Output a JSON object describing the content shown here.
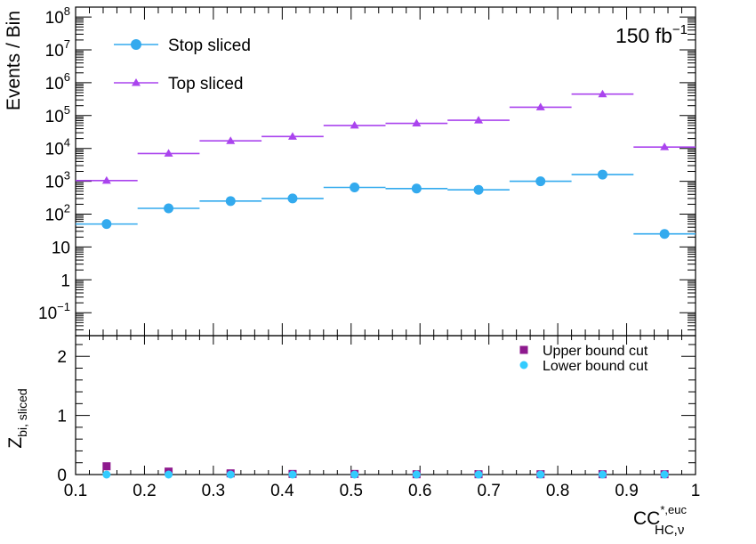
{
  "chart_data": {
    "type": "scatter",
    "top_panel": {
      "ylabel": "Events / Bin",
      "yscale": "log",
      "ylim": [
        0.02,
        200000000
      ],
      "yticks": [
        {
          "v": 0.1,
          "base": "10",
          "exp": "−1"
        },
        {
          "v": 1,
          "text": "1"
        },
        {
          "v": 10,
          "text": "10"
        },
        {
          "v": 100,
          "base": "10",
          "exp": "2"
        },
        {
          "v": 1000,
          "base": "10",
          "exp": "3"
        },
        {
          "v": 10000,
          "base": "10",
          "exp": "4"
        },
        {
          "v": 100000,
          "base": "10",
          "exp": "5"
        },
        {
          "v": 1000000,
          "base": "10",
          "exp": "6"
        },
        {
          "v": 10000000,
          "base": "10",
          "exp": "7"
        },
        {
          "v": 100000000,
          "base": "10",
          "exp": "8"
        }
      ],
      "lumi": {
        "base": "150 fb",
        "exp": "−1"
      },
      "legend_position": "top-left",
      "series": [
        {
          "name": "Stop sliced",
          "color": "#33aaee",
          "marker": "circle",
          "bins": [
            {
              "lo": 0.1,
              "hi": 0.19,
              "x": 0.145,
              "y": 50
            },
            {
              "lo": 0.19,
              "hi": 0.28,
              "x": 0.235,
              "y": 150
            },
            {
              "lo": 0.28,
              "hi": 0.37,
              "x": 0.325,
              "y": 250
            },
            {
              "lo": 0.37,
              "hi": 0.46,
              "x": 0.415,
              "y": 300
            },
            {
              "lo": 0.46,
              "hi": 0.55,
              "x": 0.505,
              "y": 650
            },
            {
              "lo": 0.55,
              "hi": 0.64,
              "x": 0.595,
              "y": 600
            },
            {
              "lo": 0.64,
              "hi": 0.73,
              "x": 0.685,
              "y": 550
            },
            {
              "lo": 0.73,
              "hi": 0.82,
              "x": 0.775,
              "y": 1000
            },
            {
              "lo": 0.82,
              "hi": 0.91,
              "x": 0.865,
              "y": 1600
            },
            {
              "lo": 0.91,
              "hi": 1.0,
              "x": 0.955,
              "y": 25
            }
          ]
        },
        {
          "name": "Top sliced",
          "color": "#aa44ee",
          "marker": "triangle",
          "bins": [
            {
              "lo": 0.1,
              "hi": 0.19,
              "x": 0.145,
              "y": 1050
            },
            {
              "lo": 0.19,
              "hi": 0.28,
              "x": 0.235,
              "y": 7000
            },
            {
              "lo": 0.28,
              "hi": 0.37,
              "x": 0.325,
              "y": 17000
            },
            {
              "lo": 0.37,
              "hi": 0.46,
              "x": 0.415,
              "y": 23000
            },
            {
              "lo": 0.46,
              "hi": 0.55,
              "x": 0.505,
              "y": 50000
            },
            {
              "lo": 0.55,
              "hi": 0.64,
              "x": 0.595,
              "y": 58000
            },
            {
              "lo": 0.64,
              "hi": 0.73,
              "x": 0.685,
              "y": 72000
            },
            {
              "lo": 0.73,
              "hi": 0.82,
              "x": 0.775,
              "y": 180000
            },
            {
              "lo": 0.82,
              "hi": 0.91,
              "x": 0.865,
              "y": 450000
            },
            {
              "lo": 0.91,
              "hi": 1.0,
              "x": 0.955,
              "y": 11000
            }
          ]
        }
      ]
    },
    "bottom_panel": {
      "ylabel": {
        "base": "Z",
        "sub": "bi, sliced"
      },
      "ylim": [
        0,
        2.35
      ],
      "yticks": [
        0,
        1,
        2
      ],
      "legend_position": "top-right",
      "series": [
        {
          "name": "Upper bound cut",
          "color": "#8e1a8e",
          "marker": "square",
          "x": [
            0.145,
            0.235,
            0.325,
            0.415,
            0.505,
            0.595,
            0.685,
            0.775,
            0.865,
            0.955
          ],
          "y": [
            0.14,
            0.05,
            0.02,
            0.01,
            0.01,
            0.005,
            0.005,
            0.005,
            0.005,
            0.005
          ]
        },
        {
          "name": "Lower bound cut",
          "color": "#33ccff",
          "marker": "circle",
          "x": [
            0.145,
            0.235,
            0.325,
            0.415,
            0.505,
            0.595,
            0.685,
            0.775,
            0.865,
            0.955
          ],
          "y": [
            0,
            0,
            0,
            0,
            0,
            0,
            0,
            0,
            0,
            0
          ]
        }
      ]
    },
    "xlabel": {
      "base": "CC",
      "sup": "*,euc",
      "sub": "HC,ν"
    },
    "xlim": [
      0.1,
      1.0
    ],
    "xticks": [
      "0.1",
      "0.2",
      "0.3",
      "0.4",
      "0.5",
      "0.6",
      "0.7",
      "0.8",
      "0.9",
      "1"
    ],
    "grid": false
  }
}
